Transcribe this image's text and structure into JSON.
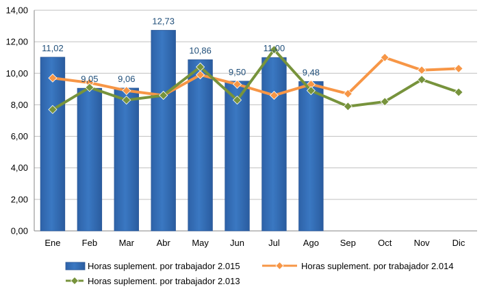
{
  "chart_data": {
    "type": "bar",
    "categories": [
      "Ene",
      "Feb",
      "Mar",
      "Abr",
      "May",
      "Jun",
      "Jul",
      "Ago",
      "Sep",
      "Oct",
      "Nov",
      "Dic"
    ],
    "ylim": [
      0,
      14
    ],
    "yticks": [
      "0,00",
      "2,00",
      "4,00",
      "6,00",
      "8,00",
      "10,00",
      "12,00",
      "14,00"
    ],
    "ytick_values": [
      0,
      2,
      4,
      6,
      8,
      10,
      12,
      14
    ],
    "grid": "horizontal",
    "legend_position": "bottom",
    "bar_series": {
      "name": "Horas suplement. por trabajador 2.015",
      "color": "#3A78C2",
      "values": [
        11.02,
        9.05,
        9.06,
        12.73,
        10.86,
        9.5,
        11.0,
        9.48
      ],
      "labels": [
        "11,02",
        "9,05",
        "9,06",
        "12,73",
        "10,86",
        "9,50",
        "11,00",
        "9,48"
      ]
    },
    "line_series": [
      {
        "name": "Horas suplement. por trabajador 2.014",
        "color": "#F79646",
        "values": [
          9.7,
          9.4,
          8.9,
          8.6,
          9.9,
          9.3,
          8.6,
          9.3,
          8.7,
          11.0,
          10.2,
          10.3
        ]
      },
      {
        "name": "Horas suplement. por trabajador 2.013",
        "color": "#77933C",
        "values": [
          7.7,
          9.1,
          8.3,
          8.6,
          10.4,
          8.3,
          11.5,
          8.9,
          7.9,
          8.2,
          9.6,
          8.8
        ]
      }
    ]
  }
}
